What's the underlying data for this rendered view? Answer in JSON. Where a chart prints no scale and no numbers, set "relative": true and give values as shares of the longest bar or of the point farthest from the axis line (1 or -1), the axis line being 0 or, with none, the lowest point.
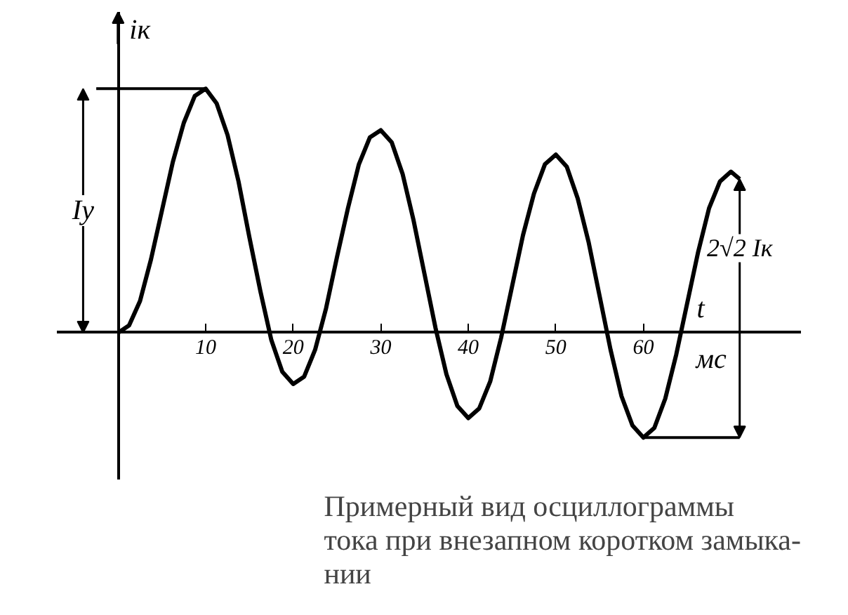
{
  "chart_data": {
    "type": "line",
    "relative": true,
    "title": "Примерный вид осциллограммы\nтока при внезапном коротком замыка-\nнии",
    "ylabel": "iк",
    "xlabel": "t",
    "annotations": [
      "мс",
      "Iy",
      "2√2 Iк"
    ],
    "xlim": [
      -7,
      78
    ],
    "xticks": [
      10,
      20,
      30,
      40,
      50,
      60
    ],
    "tick_labels": "x",
    "grid": false,
    "marker": "none",
    "line_style": "solid",
    "x": [
      0,
      1.25,
      2.5,
      3.75,
      5,
      6.25,
      7.5,
      8.75,
      10,
      11.25,
      12.5,
      13.75,
      15,
      16.25,
      17.5,
      18.75,
      20,
      21.25,
      22.5,
      23.75,
      25,
      26.25,
      27.5,
      28.75,
      30,
      31.25,
      32.5,
      33.75,
      35,
      36.25,
      37.5,
      38.75,
      40,
      41.25,
      42.5,
      43.75,
      45,
      46.25,
      47.5,
      48.75,
      50,
      51.25,
      52.5,
      53.75,
      55,
      56.25,
      57.5,
      58.75,
      60,
      61.25,
      62.5,
      63.75,
      65,
      66.25,
      67.5,
      68.75,
      70,
      71
    ],
    "series": [
      {
        "color": "#000000",
        "values": [
          0,
          0.03,
          0.13,
          0.3,
          0.5,
          0.7,
          0.86,
          0.97,
          1.0,
          0.94,
          0.81,
          0.62,
          0.39,
          0.17,
          -0.03,
          -0.16,
          -0.21,
          -0.18,
          -0.07,
          0.1,
          0.31,
          0.51,
          0.69,
          0.8,
          0.83,
          0.78,
          0.65,
          0.46,
          0.24,
          0.02,
          -0.17,
          -0.3,
          -0.35,
          -0.31,
          -0.2,
          -0.02,
          0.19,
          0.4,
          0.57,
          0.69,
          0.73,
          0.68,
          0.55,
          0.37,
          0.15,
          -0.07,
          -0.26,
          -0.38,
          -0.43,
          -0.39,
          -0.27,
          -0.09,
          0.12,
          0.33,
          0.51,
          0.62,
          0.66,
          0.63
        ]
      }
    ]
  }
}
